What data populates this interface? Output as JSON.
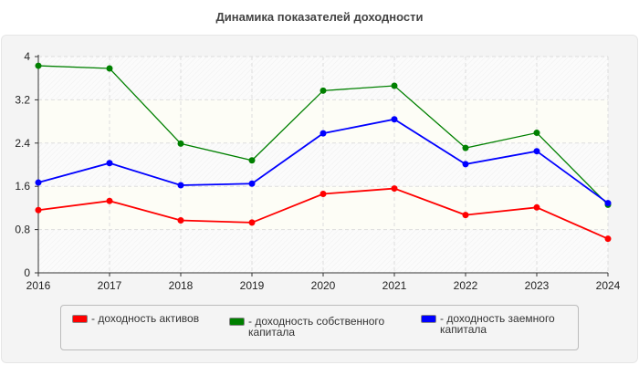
{
  "chart_data": {
    "type": "line",
    "title": "Динамика показателей доходности",
    "x": [
      "2016",
      "2017",
      "2018",
      "2019",
      "2020",
      "2021",
      "2022",
      "2023",
      "2024"
    ],
    "ylim": [
      0,
      4
    ],
    "yticks": [
      "0",
      "0.8",
      "1.6",
      "2.4",
      "3.2",
      "4"
    ],
    "grid": true,
    "legend": "bottom",
    "series": [
      {
        "name": "доходность активов",
        "color": "#ff0000",
        "values": [
          1.16,
          1.33,
          0.97,
          0.93,
          1.46,
          1.56,
          1.07,
          1.21,
          0.63
        ]
      },
      {
        "name": "доходность собственного капитала",
        "color": "#008000",
        "values": [
          3.83,
          3.78,
          2.39,
          2.08,
          3.37,
          3.46,
          2.31,
          2.59,
          1.26
        ]
      },
      {
        "name": "доходность заемного капитала",
        "color": "#0000ff",
        "values": [
          1.67,
          2.03,
          1.62,
          1.65,
          2.58,
          2.84,
          2.01,
          2.25,
          1.29
        ]
      }
    ]
  }
}
